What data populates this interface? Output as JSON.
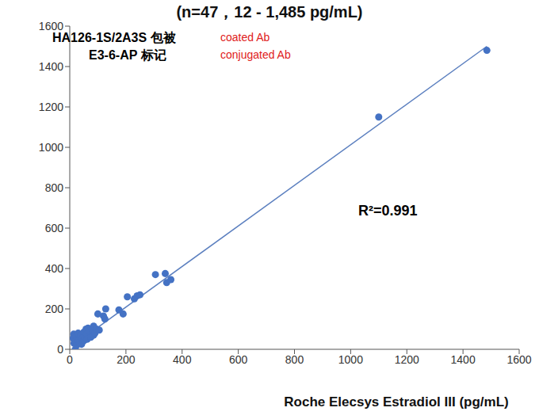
{
  "chart_data": {
    "type": "scatter",
    "title": "(n=47，12 - 1,485 pg/mL)",
    "x_label": "Roche Elecsys Estradiol III (pg/mL)",
    "annotations": [
      {
        "text": "HA126-1S/2A3S 包被",
        "color": "#000000"
      },
      {
        "text": "coated Ab",
        "color": "#e02020"
      },
      {
        "text": "E3-6-AP 标记",
        "color": "#000000"
      },
      {
        "text": "conjugated Ab",
        "color": "#e02020"
      },
      {
        "text": "R²=0.991",
        "color": "#000000"
      }
    ],
    "x": [
      12,
      14,
      15,
      18,
      20,
      22,
      25,
      28,
      30,
      32,
      35,
      38,
      40,
      42,
      45,
      48,
      50,
      52,
      55,
      58,
      60,
      62,
      65,
      70,
      75,
      80,
      85,
      85,
      90,
      95,
      100,
      105,
      120,
      125,
      128,
      175,
      190,
      205,
      230,
      240,
      250,
      305,
      340,
      345,
      360,
      1100,
      1485
    ],
    "values": [
      55,
      75,
      30,
      40,
      0,
      65,
      20,
      50,
      80,
      45,
      30,
      60,
      70,
      25,
      55,
      40,
      85,
      45,
      60,
      100,
      75,
      50,
      105,
      90,
      60,
      95,
      70,
      115,
      80,
      100,
      175,
      95,
      165,
      150,
      200,
      195,
      175,
      260,
      250,
      265,
      270,
      370,
      375,
      330,
      345,
      1150,
      1480
    ],
    "color": "#4472c4",
    "marker": "circle",
    "fit_line": {
      "x": [
        12,
        1485
      ],
      "values": [
        20,
        1500
      ],
      "color": "#5b7fbf"
    },
    "xlim": [
      0,
      1600
    ],
    "xticks": [
      0,
      200,
      400,
      600,
      800,
      1000,
      1200,
      1400,
      1600
    ],
    "ylim": [
      0,
      1600
    ],
    "yticks": [
      0,
      200,
      400,
      600,
      800,
      1000,
      1200,
      1400,
      1600
    ],
    "grid": false
  }
}
